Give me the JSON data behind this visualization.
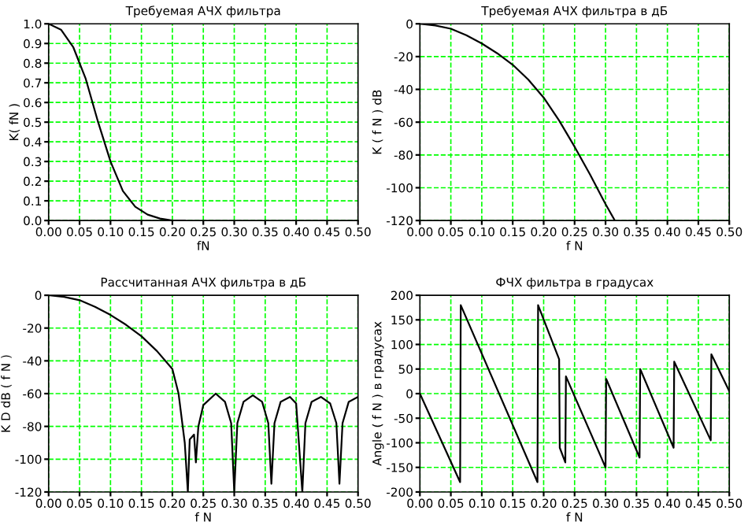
{
  "chart_data": [
    {
      "type": "line",
      "title": "Требуемая АЧХ фильтра",
      "xlabel": "fN",
      "ylabel": "K( fN )",
      "grid": true,
      "legend": false,
      "xlim": [
        0,
        0.5
      ],
      "xticks": [
        {
          "value": 0,
          "label": "0.00"
        },
        0.05,
        {
          "value": 0.1,
          "label": "0.10"
        },
        0.15,
        {
          "value": 0.2,
          "label": "0.20"
        },
        0.25,
        {
          "value": 0.3,
          "label": "0.30"
        },
        0.35,
        {
          "value": 0.4,
          "label": "0.40"
        },
        0.45,
        {
          "value": 0.5,
          "label": "0.50"
        }
      ],
      "ylim": [
        0,
        1
      ],
      "yticks": [
        {
          "value": 0,
          "label": "0.0"
        },
        0.1,
        0.2,
        0.3,
        0.4,
        0.5,
        0.6,
        0.7,
        0.8,
        0.9,
        {
          "value": 1,
          "label": "1.0"
        }
      ],
      "series": [
        {
          "color": "#000000",
          "x": [
            0,
            0.02,
            0.04,
            0.06,
            0.08,
            0.1,
            0.12,
            0.14,
            0.16,
            0.18,
            0.2,
            0.22
          ],
          "values": [
            1.0,
            0.97,
            0.88,
            0.72,
            0.5,
            0.3,
            0.15,
            0.07,
            0.03,
            0.01,
            0,
            0
          ]
        }
      ]
    },
    {
      "type": "line",
      "title": "Требуемая АЧХ фильтра в дБ",
      "xlabel": "f N",
      "ylabel": "K ( f N ) dB",
      "grid": true,
      "legend": false,
      "xlim": [
        0,
        0.5
      ],
      "xticks": [
        {
          "value": 0,
          "label": "0.00"
        },
        0.05,
        {
          "value": 0.1,
          "label": "0.10"
        },
        0.15,
        {
          "value": 0.2,
          "label": "0.20"
        },
        0.25,
        {
          "value": 0.3,
          "label": "0.30"
        },
        0.35,
        {
          "value": 0.4,
          "label": "0.40"
        },
        0.45,
        {
          "value": 0.5,
          "label": "0.50"
        }
      ],
      "ylim": [
        -120,
        0
      ],
      "yticks": [
        -120,
        -100,
        -80,
        -60,
        -40,
        -20,
        0
      ],
      "series": [
        {
          "color": "#000000",
          "x": [
            0,
            0.025,
            0.05,
            0.075,
            0.1,
            0.125,
            0.15,
            0.175,
            0.2,
            0.225,
            0.25,
            0.275,
            0.3,
            0.315
          ],
          "values": [
            0,
            -1,
            -3,
            -7,
            -12,
            -18,
            -25,
            -34,
            -45,
            -59,
            -75,
            -92,
            -110,
            -120
          ]
        }
      ]
    },
    {
      "type": "line",
      "title": "Рассчитанная АЧХ фильтра в дБ",
      "xlabel": "f N",
      "ylabel": "K D dB ( f N )",
      "grid": true,
      "legend": false,
      "xlim": [
        0,
        0.5
      ],
      "xticks": [
        {
          "value": 0,
          "label": "0.00"
        },
        0.05,
        {
          "value": 0.1,
          "label": "0.10"
        },
        0.15,
        {
          "value": 0.2,
          "label": "0.20"
        },
        0.25,
        {
          "value": 0.3,
          "label": "0.30"
        },
        0.35,
        {
          "value": 0.4,
          "label": "0.40"
        },
        0.45,
        {
          "value": 0.5,
          "label": "0.50"
        }
      ],
      "ylim": [
        -120,
        0
      ],
      "yticks": [
        -120,
        -100,
        -80,
        -60,
        -40,
        -20,
        0
      ],
      "series": [
        {
          "color": "#000000",
          "x": [
            0,
            0.025,
            0.05,
            0.075,
            0.1,
            0.125,
            0.15,
            0.175,
            0.2,
            0.21,
            0.22,
            0.225,
            0.228,
            0.235,
            0.238,
            0.242,
            0.25,
            0.27,
            0.285,
            0.295,
            0.3,
            0.305,
            0.315,
            0.33,
            0.345,
            0.355,
            0.36,
            0.365,
            0.375,
            0.39,
            0.4,
            0.41,
            0.415,
            0.425,
            0.44,
            0.455,
            0.465,
            0.47,
            0.475,
            0.485,
            0.5
          ],
          "values": [
            0,
            -1,
            -3,
            -7,
            -12,
            -18,
            -25,
            -34,
            -45,
            -60,
            -90,
            -120,
            -88,
            -85,
            -102,
            -80,
            -67,
            -60,
            -65,
            -78,
            -120,
            -78,
            -65,
            -61,
            -65,
            -78,
            -115,
            -78,
            -65,
            -62,
            -66,
            -120,
            -78,
            -65,
            -62,
            -66,
            -78,
            -115,
            -78,
            -65,
            -62
          ]
        }
      ]
    },
    {
      "type": "line",
      "title": "ФЧХ фильтра в градусах",
      "xlabel": "f N",
      "ylabel": "Angle ( f N ) в градусах",
      "grid": true,
      "legend": false,
      "xlim": [
        0,
        0.5
      ],
      "xticks": [
        {
          "value": 0,
          "label": "0.00"
        },
        0.05,
        {
          "value": 0.1,
          "label": "0.10"
        },
        0.15,
        {
          "value": 0.2,
          "label": "0.20"
        },
        0.25,
        {
          "value": 0.3,
          "label": "0.30"
        },
        0.35,
        {
          "value": 0.4,
          "label": "0.40"
        },
        0.45,
        {
          "value": 0.5,
          "label": "0.50"
        }
      ],
      "ylim": [
        -200,
        200
      ],
      "yticks": [
        -200,
        -150,
        -100,
        -50,
        0,
        50,
        100,
        150,
        200
      ],
      "series": [
        {
          "color": "#000000",
          "x": [
            0,
            0.065,
            0.066,
            0.19,
            0.191,
            0.225,
            0.226,
            0.235,
            0.236,
            0.3,
            0.301,
            0.355,
            0.356,
            0.41,
            0.411,
            0.47,
            0.471,
            0.5
          ],
          "values": [
            0,
            -180,
            180,
            -180,
            180,
            70,
            -110,
            -140,
            35,
            -150,
            30,
            -130,
            50,
            -110,
            65,
            -95,
            80,
            5
          ]
        }
      ]
    }
  ]
}
